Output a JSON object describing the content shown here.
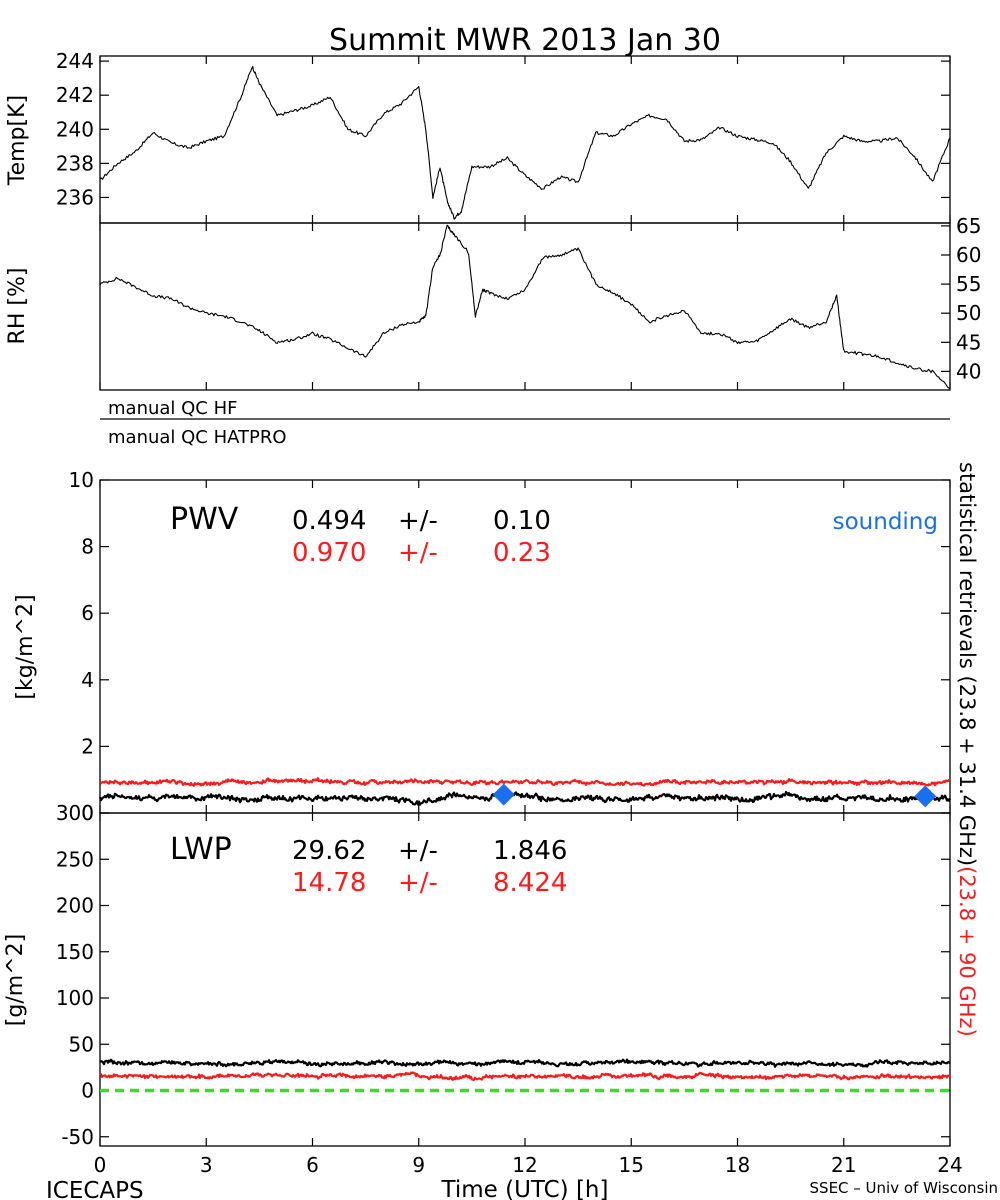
{
  "title": "Summit MWR 2013 Jan 30",
  "colors": {
    "primary": "#000000",
    "secondary": "#ff1a1a",
    "sounding": "#1a6fef",
    "zero_line": "#33dd33"
  },
  "qc_labels": [
    "manual  QC  HF",
    "manual  QC  HATPRO"
  ],
  "side_labels": {
    "part1": "statistical  retrievals  (23.8 + 31.4 GHz)",
    "part2": "(23.8 + 90 GHz)"
  },
  "footer": {
    "left": "ICECAPS",
    "right": "SSEC  –  Univ of Wisconsin"
  },
  "chart_data": [
    {
      "id": "temp",
      "type": "line",
      "ylabel": "Temp[K]",
      "xlim": [
        0,
        24
      ],
      "ylim": [
        234.5,
        244.3
      ],
      "yticks": [
        236,
        238,
        240,
        242,
        244
      ],
      "series": [
        {
          "x": [
            0,
            0.5,
            1,
            1.5,
            2,
            2.5,
            3,
            3.5,
            4,
            4.3,
            4.5,
            5,
            5.5,
            6,
            6.5,
            7,
            7.5,
            8,
            8.5,
            9,
            9.2,
            9.4,
            9.6,
            9.8,
            10,
            10.2,
            10.5,
            11,
            11.5,
            12,
            12.5,
            13,
            13.5,
            14,
            14.5,
            15,
            15.5,
            16,
            16.5,
            17,
            17.5,
            18,
            18.5,
            19,
            19.5,
            20,
            20.5,
            21,
            21.5,
            22,
            22.5,
            23,
            23.5,
            24
          ],
          "y": [
            237.0,
            238.0,
            238.7,
            239.8,
            239.2,
            238.9,
            239.3,
            239.6,
            242.0,
            243.7,
            242.7,
            240.8,
            241.1,
            241.4,
            241.9,
            240.0,
            239.6,
            240.9,
            241.5,
            242.5,
            240.0,
            236.0,
            237.8,
            235.8,
            234.8,
            235.2,
            237.8,
            237.8,
            238.3,
            237.3,
            236.5,
            237.2,
            236.9,
            239.8,
            239.6,
            240.3,
            240.8,
            240.6,
            239.3,
            239.4,
            240.1,
            239.6,
            239.4,
            239.2,
            238.1,
            236.5,
            238.6,
            239.6,
            239.3,
            239.3,
            239.5,
            238.4,
            236.9,
            239.5
          ]
        }
      ]
    },
    {
      "id": "rh",
      "type": "line",
      "ylabel": "RH [%]",
      "xlim": [
        0,
        24
      ],
      "ylim": [
        36.8,
        65.5
      ],
      "yticks": [
        40,
        45,
        50,
        55,
        60,
        65
      ],
      "series": [
        {
          "x": [
            0,
            0.5,
            1,
            1.5,
            2,
            2.5,
            3,
            3.5,
            4,
            4.5,
            5,
            5.5,
            6,
            6.5,
            7,
            7.5,
            8,
            8.5,
            9,
            9.2,
            9.4,
            9.6,
            9.8,
            10,
            10.4,
            10.6,
            10.8,
            11,
            11.5,
            12,
            12.5,
            13,
            13.5,
            14,
            14.5,
            15,
            15.5,
            16,
            16.5,
            17,
            17.5,
            18,
            18.5,
            19,
            19.5,
            20,
            20.5,
            20.8,
            21,
            21.5,
            22,
            22.5,
            23,
            23.5,
            24
          ],
          "y": [
            55.0,
            56.0,
            54.5,
            53.0,
            52.5,
            51.0,
            50.0,
            49.5,
            48.5,
            47.0,
            45.0,
            45.5,
            46.5,
            45.5,
            44.0,
            42.5,
            46.5,
            48.0,
            48.5,
            49.5,
            58.0,
            60.0,
            65.0,
            63.5,
            60.5,
            49.5,
            54.0,
            53.5,
            52.5,
            54.0,
            59.5,
            60.0,
            61.0,
            55.0,
            53.5,
            51.5,
            48.5,
            49.5,
            50.5,
            46.5,
            46.5,
            45.0,
            45.0,
            47.0,
            49.0,
            47.5,
            48.5,
            53.0,
            43.5,
            43.0,
            42.5,
            41.5,
            40.5,
            40.0,
            37.0
          ]
        }
      ]
    },
    {
      "id": "pwv",
      "type": "line",
      "title": "PWV",
      "ylabel": "[kg/m^2]",
      "xlim": [
        0,
        24
      ],
      "ylim": [
        0,
        10
      ],
      "yticks": [
        0,
        2,
        4,
        6,
        8,
        10
      ],
      "stats": [
        {
          "mean": "0.494",
          "pm": "+/-",
          "sd": "0.10",
          "color": "#000000"
        },
        {
          "mean": "0.970",
          "pm": "+/-",
          "sd": "0.23",
          "color": "#ff1a1a"
        }
      ],
      "sounding_label": "sounding",
      "sounding_points": [
        {
          "x": 11.4,
          "y": 0.55
        },
        {
          "x": 23.3,
          "y": 0.5
        }
      ],
      "series": [
        {
          "mean": 0.45,
          "noise": 0.12,
          "color": "#000000"
        },
        {
          "mean": 0.92,
          "noise": 0.08,
          "color": "#ff1a1a"
        }
      ]
    },
    {
      "id": "lwp",
      "type": "line",
      "title": "LWP",
      "ylabel": "[g/m^2]",
      "xlabel": "Time (UTC) [h]",
      "xlim": [
        0,
        24
      ],
      "xticks": [
        0,
        3,
        6,
        9,
        12,
        15,
        18,
        21,
        24
      ],
      "ylim": [
        -60,
        300
      ],
      "yticks": [
        -50,
        0,
        50,
        100,
        150,
        200,
        250,
        300
      ],
      "stats": [
        {
          "mean": "29.62",
          "pm": "+/-",
          "sd": "1.846",
          "color": "#000000"
        },
        {
          "mean": "14.78",
          "pm": "+/-",
          "sd": "8.424",
          "color": "#ff1a1a"
        }
      ],
      "zero_line": 0,
      "series": [
        {
          "mean": 29.6,
          "noise": 2.8,
          "color": "#000000"
        },
        {
          "mean": 15.0,
          "noise": 2.8,
          "color": "#ff1a1a"
        }
      ]
    }
  ]
}
